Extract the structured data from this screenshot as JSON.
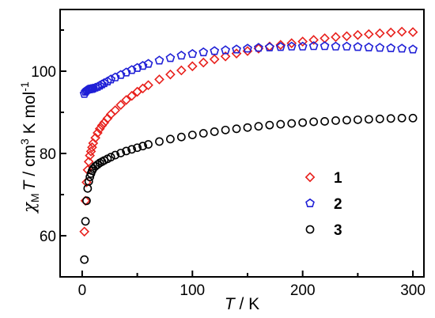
{
  "chart_data": {
    "type": "scatter",
    "xlabel": {
      "symbol": "T",
      "unit": " / K"
    },
    "ylabel": {
      "prefix": "χ",
      "subscript": "M",
      "symbol": "T",
      "unit": " / cm",
      "sup1": "3",
      "mid": " K mol",
      "sup2": "-1"
    },
    "xlim": [
      -20,
      310
    ],
    "ylim": [
      50,
      115
    ],
    "xticks": [
      0,
      100,
      200,
      300
    ],
    "yticks": [
      60,
      80,
      100
    ],
    "tick_labels_x": [
      "0",
      "100",
      "200",
      "300"
    ],
    "tick_labels_y": [
      "60",
      "80",
      "100"
    ],
    "legend_position": "center-right",
    "series": [
      {
        "name": "1",
        "marker": "diamond",
        "color": "#e8201c",
        "x": [
          2,
          3,
          4,
          5,
          6,
          7,
          8,
          9,
          10,
          12,
          14,
          16,
          18,
          20,
          23,
          26,
          30,
          35,
          40,
          45,
          50,
          55,
          60,
          70,
          80,
          90,
          100,
          110,
          120,
          130,
          140,
          150,
          160,
          170,
          180,
          190,
          200,
          210,
          220,
          230,
          240,
          250,
          260,
          270,
          280,
          290,
          300
        ],
        "y": [
          61,
          68.5,
          73,
          76,
          78,
          79.5,
          80.5,
          81.5,
          82.5,
          83.8,
          85,
          86,
          86.8,
          87.5,
          88.5,
          89.5,
          90.5,
          91.8,
          93,
          94,
          95,
          95.8,
          96.6,
          98,
          99.2,
          100.2,
          101.2,
          102.1,
          102.9,
          103.6,
          104.3,
          104.9,
          105.5,
          106,
          106.4,
          106.8,
          107.2,
          107.6,
          108,
          108.3,
          108.5,
          108.8,
          109,
          109.2,
          109.4,
          109.6,
          109.5
        ]
      },
      {
        "name": "2",
        "marker": "pentagon",
        "color": "#1f1fd6",
        "x": [
          2,
          3,
          4,
          5,
          6,
          7,
          8,
          9,
          10,
          12,
          14,
          16,
          18,
          20,
          23,
          26,
          30,
          35,
          40,
          45,
          50,
          55,
          60,
          70,
          80,
          90,
          100,
          110,
          120,
          130,
          140,
          150,
          160,
          170,
          180,
          190,
          200,
          210,
          220,
          230,
          240,
          250,
          260,
          270,
          280,
          290,
          300
        ],
        "y": [
          94.5,
          95,
          95.3,
          95.5,
          95.6,
          95.6,
          95.7,
          95.7,
          95.8,
          96,
          96.2,
          96.5,
          96.8,
          97.1,
          97.5,
          98,
          98.5,
          99.1,
          99.7,
          100.3,
          100.8,
          101.3,
          101.8,
          102.6,
          103.2,
          103.8,
          104.2,
          104.6,
          104.9,
          105.1,
          105.3,
          105.5,
          105.7,
          105.8,
          105.9,
          106,
          106,
          106.1,
          106.1,
          106,
          106,
          105.9,
          105.8,
          105.7,
          105.6,
          105.5,
          105.3
        ]
      },
      {
        "name": "3",
        "marker": "circle",
        "color": "#000000",
        "x": [
          2,
          3,
          4,
          5,
          6,
          7,
          8,
          9,
          10,
          12,
          14,
          16,
          18,
          20,
          23,
          26,
          30,
          35,
          40,
          45,
          50,
          55,
          60,
          70,
          80,
          90,
          100,
          110,
          120,
          130,
          140,
          150,
          160,
          170,
          180,
          190,
          200,
          210,
          220,
          230,
          240,
          250,
          260,
          270,
          280,
          290,
          300
        ],
        "y": [
          54.2,
          63.5,
          68.5,
          71.5,
          73.2,
          74.3,
          75.1,
          75.8,
          76.3,
          76.9,
          77.3,
          77.7,
          78,
          78.3,
          78.7,
          79.1,
          79.6,
          80.1,
          80.6,
          81,
          81.4,
          81.8,
          82.2,
          82.9,
          83.5,
          84,
          84.5,
          84.9,
          85.3,
          85.7,
          86,
          86.3,
          86.6,
          86.9,
          87.1,
          87.3,
          87.5,
          87.7,
          87.8,
          88,
          88.1,
          88.2,
          88.3,
          88.4,
          88.5,
          88.6,
          88.6
        ]
      }
    ]
  }
}
